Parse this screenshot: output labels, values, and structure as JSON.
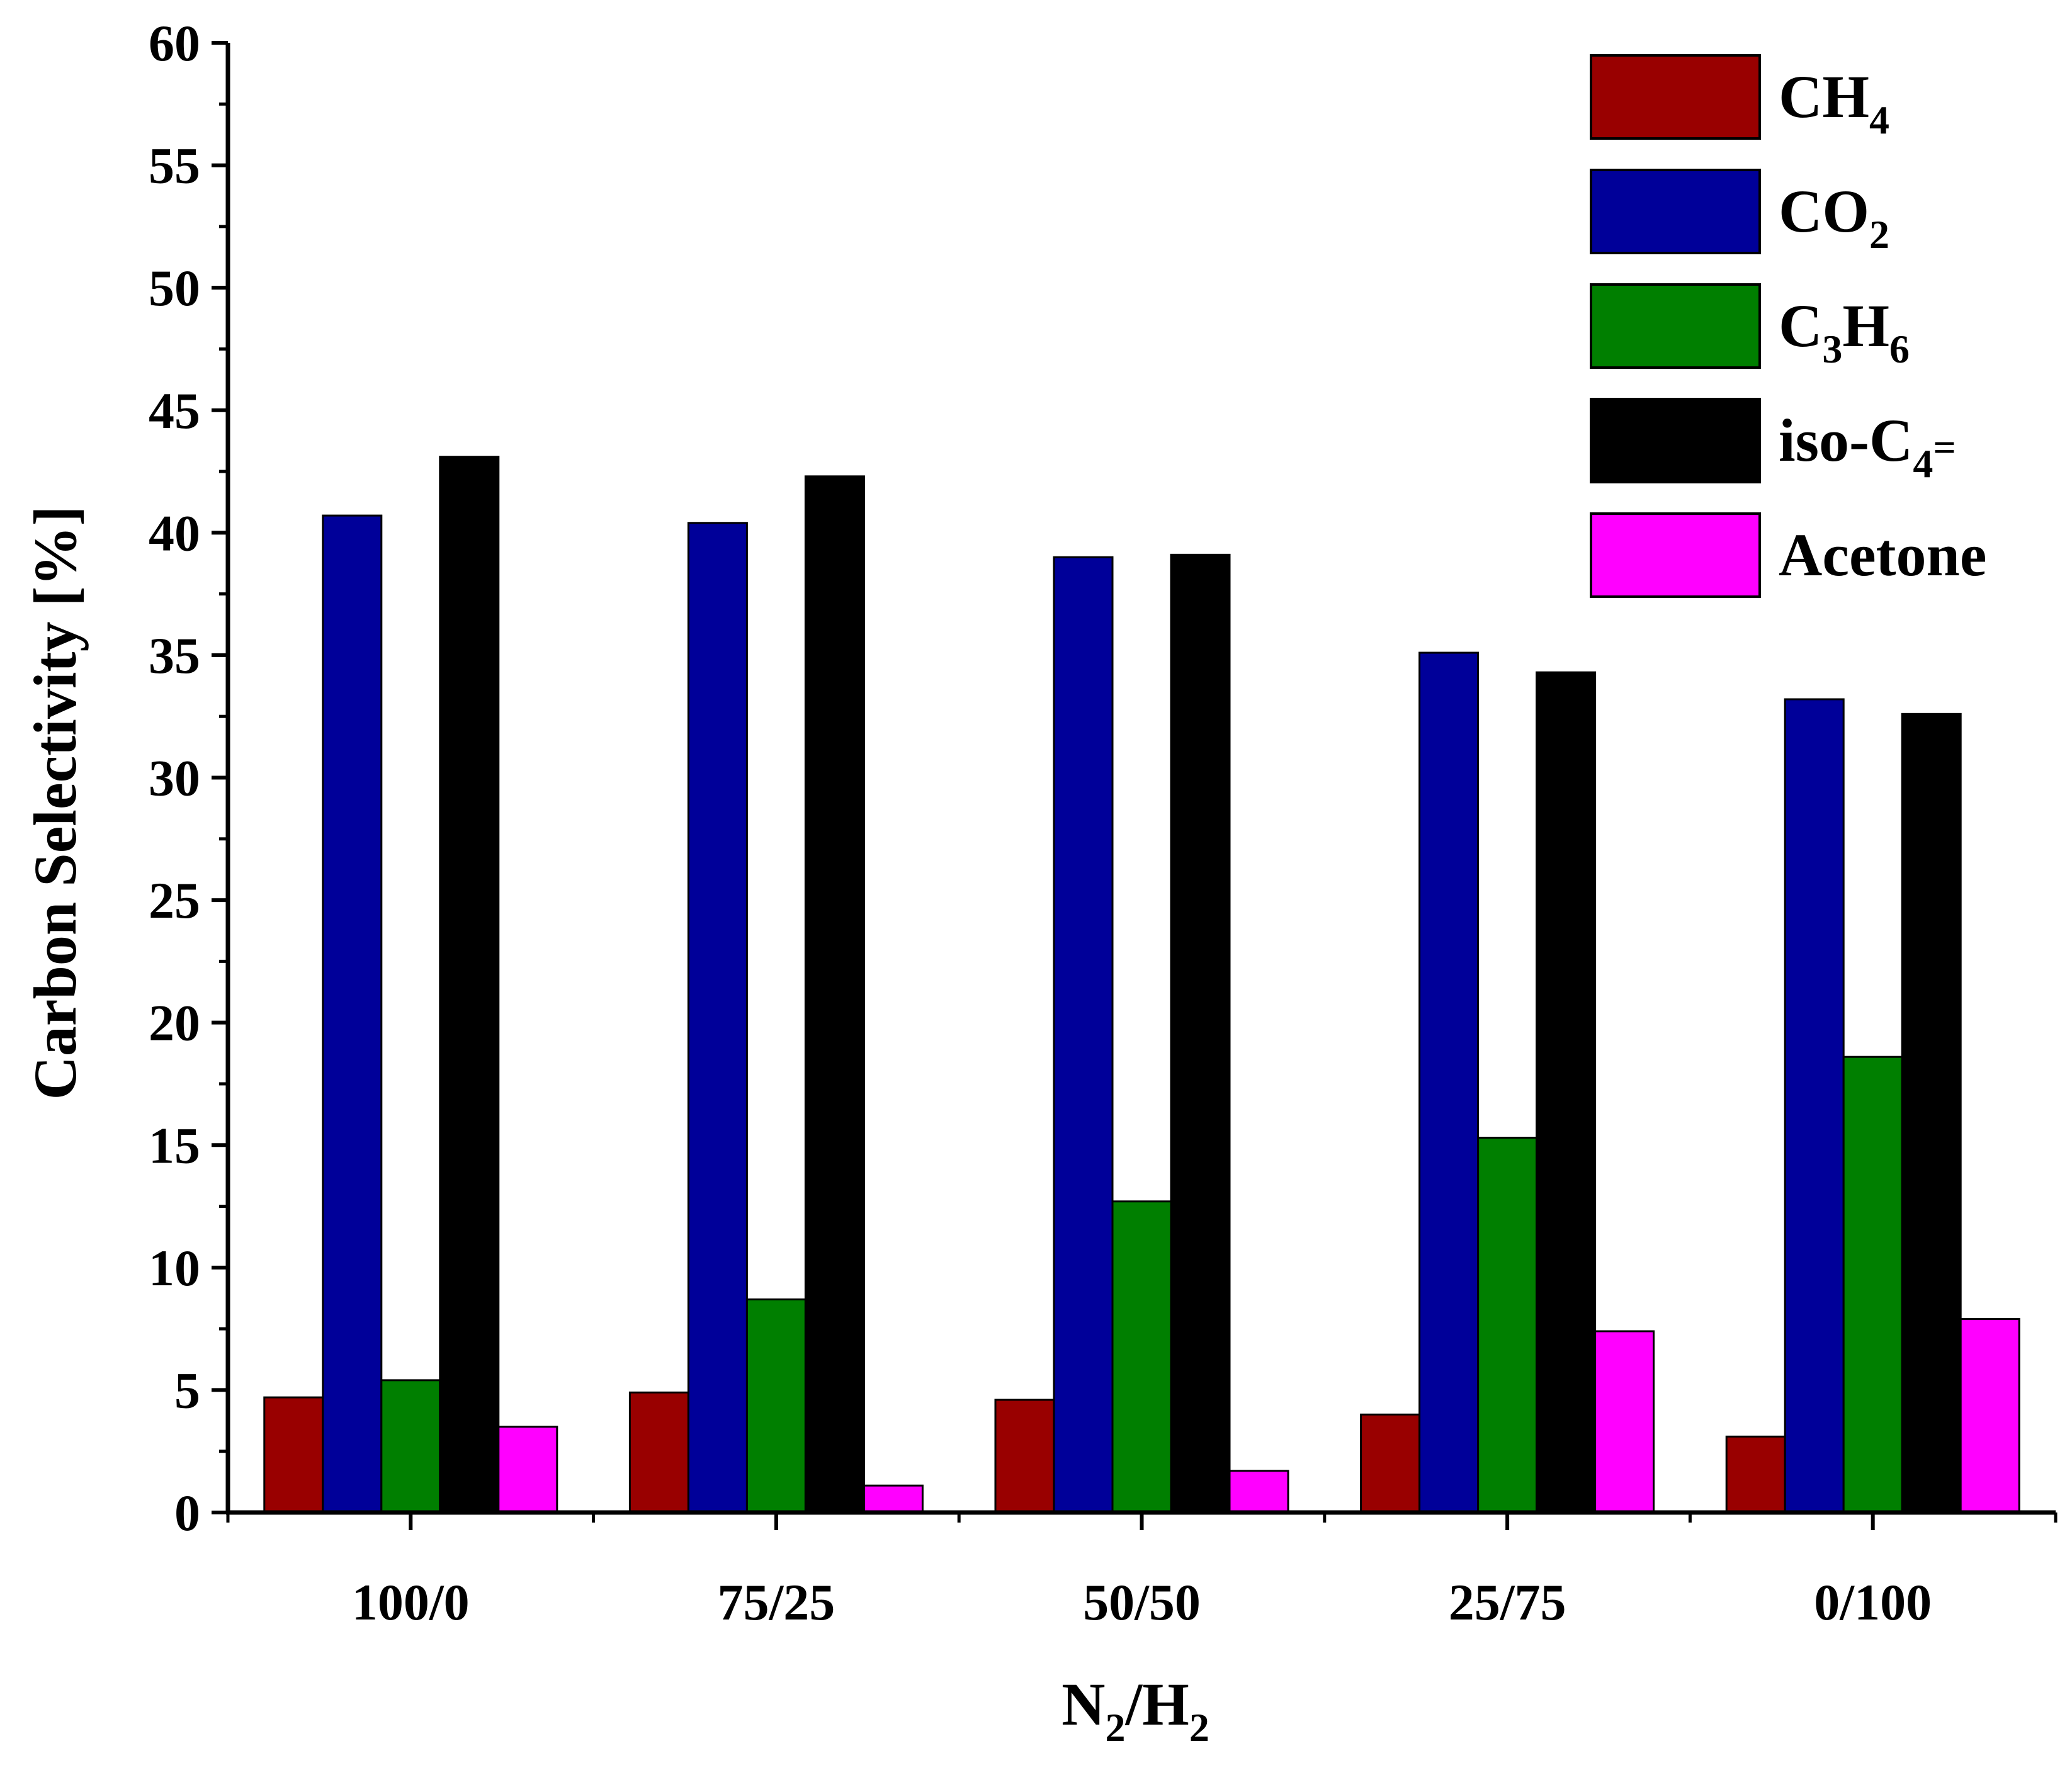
{
  "chart_data": {
    "type": "bar",
    "title": "",
    "xlabel": {
      "parts": [
        [
          "N",
          ""
        ],
        [
          "2",
          "sub"
        ],
        [
          "/H",
          ""
        ],
        [
          "2",
          "sub"
        ]
      ]
    },
    "ylabel": "Carbon Selectivity [%]",
    "ylim": [
      0,
      60
    ],
    "y_major_ticks": [
      0,
      5,
      10,
      15,
      20,
      25,
      30,
      35,
      40,
      45,
      50,
      55,
      60
    ],
    "categories": [
      "100/0",
      "75/25",
      "50/50",
      "25/75",
      "0/100"
    ],
    "series": [
      {
        "name": "CH4",
        "label_parts": [
          [
            "CH",
            ""
          ],
          [
            "4",
            "sub"
          ]
        ],
        "color": "#990000",
        "values": [
          4.7,
          4.9,
          4.6,
          4.0,
          3.1
        ]
      },
      {
        "name": "CO2",
        "label_parts": [
          [
            "CO",
            ""
          ],
          [
            "2",
            "sub"
          ]
        ],
        "color": "#000099",
        "values": [
          40.7,
          40.4,
          39.0,
          35.1,
          33.2
        ]
      },
      {
        "name": "C3H6",
        "label_parts": [
          [
            "C",
            ""
          ],
          [
            "3",
            "sub"
          ],
          [
            "H",
            ""
          ],
          [
            "6",
            "sub"
          ]
        ],
        "color": "#007F00",
        "values": [
          5.4,
          8.7,
          12.7,
          15.3,
          18.6
        ]
      },
      {
        "name": "iso-C4=",
        "label_parts": [
          [
            "iso-C",
            ""
          ],
          [
            "4",
            "sub"
          ],
          [
            "=",
            "sup"
          ]
        ],
        "color": "#000000",
        "values": [
          43.1,
          42.3,
          39.1,
          34.3,
          32.6
        ]
      },
      {
        "name": "Acetone",
        "label_parts": [
          [
            "Acetone",
            ""
          ]
        ],
        "color": "#FF00FF",
        "values": [
          3.5,
          1.1,
          1.7,
          7.4,
          7.9
        ]
      }
    ],
    "grid": false,
    "legend_position": "top-right"
  }
}
